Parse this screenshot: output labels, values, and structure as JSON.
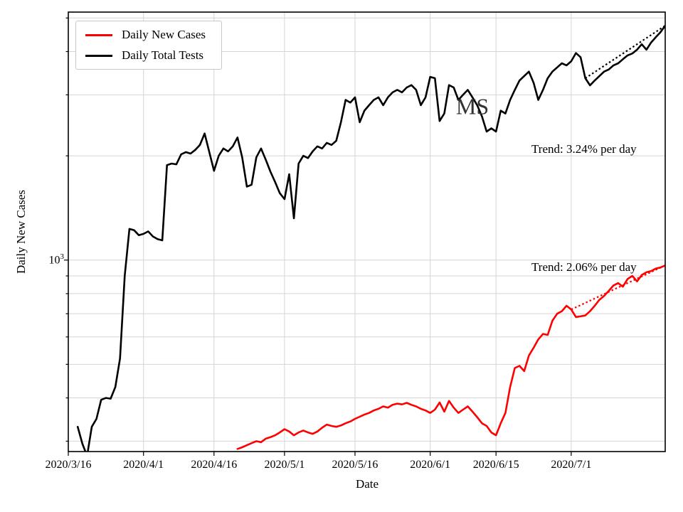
{
  "figure": {
    "background": "#ffffff",
    "grid_color": "#d4d4d4",
    "spine_color": "#000000",
    "ytick": {
      "base": "10",
      "exponent": "3"
    }
  },
  "legend": {
    "items": [
      {
        "label": "Daily New Cases",
        "color": "#ff0000"
      },
      {
        "label": "Daily Total Tests",
        "color": "#000000"
      }
    ]
  },
  "chart_data": {
    "type": "line",
    "title": "",
    "state_label": "MS",
    "xlabel": "Date",
    "ylabel": "Daily New Cases",
    "yscale": "log",
    "ylim": [
      280,
      5200
    ],
    "grid": true,
    "legend_position": "upper-left",
    "x_day0_date": "2020/3/16",
    "x_range_days": [
      0,
      127
    ],
    "x_ticks": [
      {
        "day": 0,
        "label": "2020/3/16"
      },
      {
        "day": 16,
        "label": "2020/4/1"
      },
      {
        "day": 31,
        "label": "2020/4/16"
      },
      {
        "day": 46,
        "label": "2020/5/1"
      },
      {
        "day": 61,
        "label": "2020/5/16"
      },
      {
        "day": 77,
        "label": "2020/6/1"
      },
      {
        "day": 91,
        "label": "2020/6/15"
      },
      {
        "day": 107,
        "label": "2020/7/1"
      }
    ],
    "y_gridline_values": [
      300,
      400,
      500,
      600,
      700,
      800,
      900,
      1000,
      2000,
      3000,
      4000,
      5000
    ],
    "y_major_tick_value": 1000,
    "series": [
      {
        "name": "Daily New Cases",
        "color": "#ff0000",
        "start_day": 36,
        "start_date": "2020/4/21",
        "values": [
          285,
          288,
          292,
          296,
          300,
          298,
          305,
          308,
          312,
          318,
          325,
          320,
          312,
          318,
          322,
          318,
          315,
          320,
          328,
          335,
          332,
          330,
          333,
          338,
          342,
          348,
          353,
          358,
          362,
          368,
          372,
          378,
          375,
          382,
          385,
          383,
          387,
          382,
          378,
          372,
          368,
          362,
          370,
          388,
          365,
          392,
          375,
          362,
          370,
          378,
          365,
          352,
          338,
          332,
          318,
          312,
          338,
          362,
          430,
          488,
          495,
          478,
          530,
          558,
          590,
          612,
          608,
          668,
          700,
          712,
          738,
          720,
          685,
          688,
          692,
          712,
          738,
          768,
          788,
          815,
          845,
          858,
          838,
          882,
          900,
          868,
          905,
          922,
          930,
          945,
          952,
          965
        ]
      },
      {
        "name": "Daily Total Tests",
        "color": "#000000",
        "start_day": 2,
        "start_date": "2020/3/18",
        "values": [
          330,
          295,
          272,
          330,
          348,
          395,
          400,
          398,
          430,
          520,
          900,
          1230,
          1220,
          1180,
          1190,
          1210,
          1170,
          1150,
          1140,
          1880,
          1900,
          1890,
          2020,
          2050,
          2030,
          2080,
          2150,
          2320,
          2050,
          1810,
          2000,
          2100,
          2060,
          2130,
          2260,
          1980,
          1630,
          1650,
          1980,
          2100,
          1950,
          1800,
          1680,
          1560,
          1500,
          1770,
          1320,
          1900,
          2000,
          1970,
          2060,
          2130,
          2100,
          2180,
          2150,
          2210,
          2500,
          2900,
          2850,
          2950,
          2500,
          2700,
          2800,
          2900,
          2950,
          2800,
          2950,
          3050,
          3100,
          3050,
          3150,
          3200,
          3100,
          2800,
          2950,
          3380,
          3350,
          2520,
          2650,
          3200,
          3150,
          2900,
          3000,
          3100,
          2950,
          2800,
          2600,
          2350,
          2400,
          2350,
          2700,
          2650,
          2900,
          3100,
          3300,
          3400,
          3500,
          3250,
          2900,
          3100,
          3350,
          3500,
          3600,
          3700,
          3650,
          3750,
          3960,
          3850,
          3350,
          3195,
          3300,
          3400,
          3500,
          3550,
          3650,
          3700,
          3800,
          3900,
          3950,
          4050,
          4200,
          4050,
          4250,
          4400,
          4550,
          4750
        ]
      }
    ],
    "trends": [
      {
        "label": "Trend: 3.24% per day",
        "series": "Daily Total Tests",
        "rate_pct_per_day": 3.24,
        "start_day": 110,
        "end_day": 127,
        "color": "#000000"
      },
      {
        "label": "Trend: 2.06% per day",
        "series": "Daily New Cases",
        "rate_pct_per_day": 2.06,
        "start_day": 107,
        "end_day": 127,
        "color": "#ff0000"
      }
    ]
  }
}
